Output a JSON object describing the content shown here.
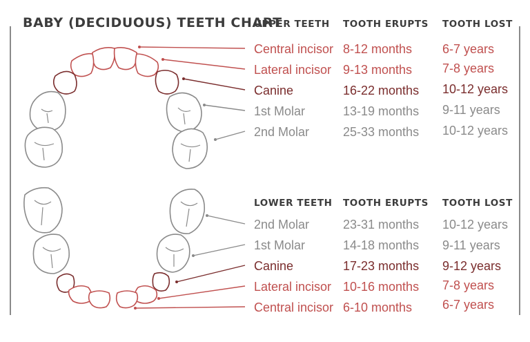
{
  "title": "BABY (DECIDUOUS) TEETH CHART",
  "colors": {
    "incisor": "#c0504f",
    "canine": "#7a2d2d",
    "molar": "#8a8a8a",
    "text_dark": "#3c3c3c"
  },
  "upper": {
    "headers": {
      "group": "UPPER TEETH",
      "erupts": "TOOTH ERUPTS",
      "lost": "TOOTH LOST"
    },
    "rows": [
      {
        "name": "Central incisor",
        "erupts": "8-12 months",
        "lost": "6-7 years",
        "kind": "incisor"
      },
      {
        "name": "Lateral incisor",
        "erupts": "9-13 months",
        "lost": "7-8 years",
        "kind": "incisor"
      },
      {
        "name": "Canine",
        "erupts": "16-22 months",
        "lost": "10-12 years",
        "kind": "canine"
      },
      {
        "name": "1st Molar",
        "erupts": "13-19 months",
        "lost": "9-11 years",
        "kind": "molar"
      },
      {
        "name": "2nd Molar",
        "erupts": "25-33 months",
        "lost": "10-12 years",
        "kind": "molar"
      }
    ]
  },
  "lower": {
    "headers": {
      "group": "LOWER TEETH",
      "erupts": "TOOTH ERUPTS",
      "lost": "TOOTH LOST"
    },
    "rows": [
      {
        "name": "2nd Molar",
        "erupts": "23-31 months",
        "lost": "10-12 years",
        "kind": "molar"
      },
      {
        "name": "1st Molar",
        "erupts": "14-18 months",
        "lost": "9-11 years",
        "kind": "molar"
      },
      {
        "name": "Canine",
        "erupts": "17-23 months",
        "lost": "9-12 years",
        "kind": "canine"
      },
      {
        "name": "Lateral incisor",
        "erupts": "10-16 months",
        "lost": "7-8 years",
        "kind": "incisor"
      },
      {
        "name": "Central incisor",
        "erupts": "6-10 months",
        "lost": "6-7 years",
        "kind": "incisor"
      }
    ]
  }
}
